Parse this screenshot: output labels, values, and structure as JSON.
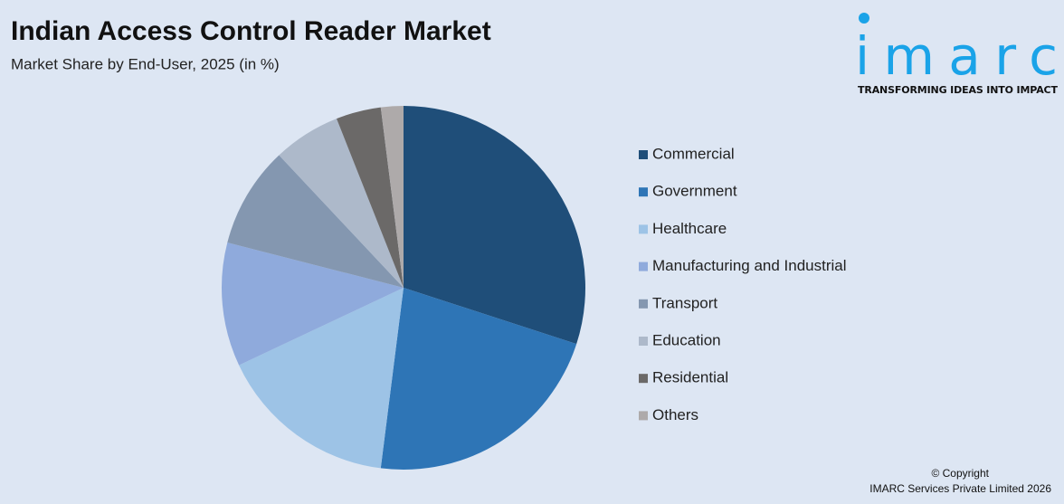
{
  "chart_data": {
    "type": "pie",
    "title": "Indian Access Control Reader Market",
    "subtitle": "Market Share by End-User, 2025 (in %)",
    "categories": [
      "Commercial",
      "Government",
      "Healthcare",
      "Manufacturing and Industrial",
      "Transport",
      "Education",
      "Residential",
      "Others"
    ],
    "values": [
      30,
      22,
      16,
      11,
      9,
      6,
      4,
      2
    ],
    "colors": [
      "#1f4e79",
      "#2e75b6",
      "#9dc3e6",
      "#8faadc",
      "#8497b0",
      "#adb9ca",
      "#6b6968",
      "#aeaaaa"
    ],
    "legend": "right"
  },
  "logo": {
    "name": "imarc",
    "tagline": "TRANSFORMING IDEAS INTO IMPACT"
  },
  "footer": {
    "copyright": "© Copyright",
    "company": "IMARC Services Private Limited 2026"
  }
}
